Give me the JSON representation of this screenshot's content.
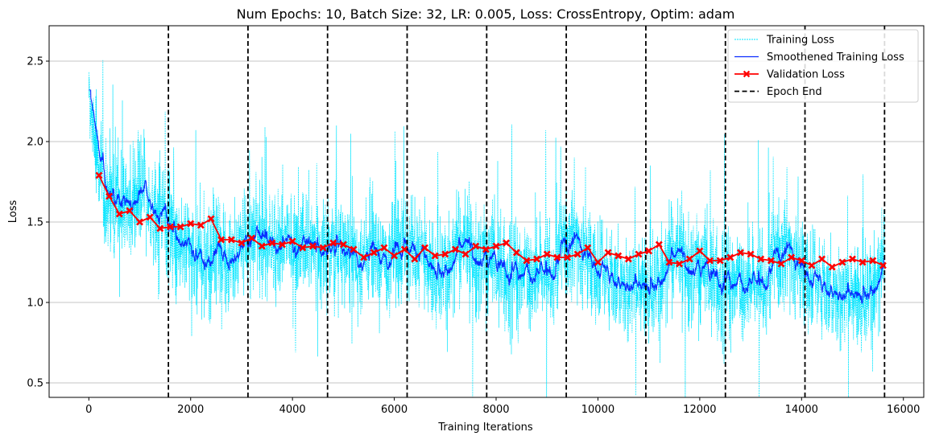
{
  "chart_data": {
    "type": "line",
    "title": "Num Epochs: 10, Batch Size: 32, LR: 0.005, Loss: CrossEntropy, Optim: adam",
    "xlabel": "Training Iterations",
    "ylabel": "Loss",
    "xlim": [
      -780,
      16400
    ],
    "ylim": [
      0.41,
      2.72
    ],
    "xticks": [
      0,
      2000,
      4000,
      6000,
      8000,
      10000,
      12000,
      14000,
      16000
    ],
    "xtick_labels": [
      "0",
      "2000",
      "4000",
      "6000",
      "8000",
      "10000",
      "12000",
      "14000",
      "16000"
    ],
    "yticks": [
      0.5,
      1.0,
      1.5,
      2.0,
      2.5
    ],
    "ytick_labels": [
      "0.5",
      "1.0",
      "1.5",
      "2.0",
      "2.5"
    ],
    "grid": "horizontal",
    "legend_position": "top-right",
    "colors": {
      "training": "#00e5ff",
      "smoothed": "#0a2cff",
      "validation": "#ff0000",
      "epoch": "#000000",
      "grid": "#b0b0b0"
    },
    "legend": [
      {
        "label": "Training Loss",
        "style": "training"
      },
      {
        "label": "Smoothened Training Loss",
        "style": "smoothed"
      },
      {
        "label": "Validation Loss",
        "style": "validation"
      },
      {
        "label": "Epoch End",
        "style": "epoch"
      }
    ],
    "epoch_ends": [
      1563,
      3126,
      4689,
      6252,
      7815,
      9378,
      10941,
      12504,
      14067,
      15630
    ],
    "validation_loss": {
      "x": [
        200,
        400,
        600,
        800,
        1000,
        1200,
        1400,
        1600,
        1800,
        2000,
        2200,
        2400,
        2600,
        2800,
        3000,
        3200,
        3400,
        3600,
        3800,
        4000,
        4200,
        4400,
        4600,
        4800,
        5000,
        5200,
        5400,
        5600,
        5800,
        6000,
        6200,
        6400,
        6600,
        6800,
        7000,
        7200,
        7400,
        7600,
        7800,
        8000,
        8200,
        8400,
        8600,
        8800,
        9000,
        9200,
        9400,
        9600,
        9800,
        10000,
        10200,
        10400,
        10600,
        10800,
        11000,
        11200,
        11400,
        11600,
        11800,
        12000,
        12200,
        12400,
        12600,
        12800,
        13000,
        13200,
        13400,
        13600,
        13800,
        14000,
        14200,
        14400,
        14600,
        14800,
        15000,
        15200,
        15400,
        15600
      ],
      "y": [
        1.79,
        1.66,
        1.55,
        1.57,
        1.5,
        1.53,
        1.46,
        1.47,
        1.47,
        1.49,
        1.48,
        1.52,
        1.39,
        1.39,
        1.37,
        1.4,
        1.35,
        1.37,
        1.36,
        1.38,
        1.34,
        1.35,
        1.34,
        1.37,
        1.36,
        1.33,
        1.28,
        1.31,
        1.34,
        1.29,
        1.33,
        1.27,
        1.34,
        1.29,
        1.3,
        1.33,
        1.3,
        1.35,
        1.33,
        1.35,
        1.37,
        1.31,
        1.26,
        1.27,
        1.3,
        1.28,
        1.28,
        1.3,
        1.34,
        1.25,
        1.31,
        1.29,
        1.27,
        1.3,
        1.32,
        1.36,
        1.25,
        1.24,
        1.27,
        1.32,
        1.26,
        1.26,
        1.28,
        1.31,
        1.3,
        1.27,
        1.26,
        1.24,
        1.28,
        1.26,
        1.23,
        1.27,
        1.22,
        1.25,
        1.27,
        1.25,
        1.26,
        1.23
      ]
    },
    "training_loss_profile": {
      "total_iterations": 15630,
      "start_value": 2.32,
      "trend_points": [
        [
          0,
          2.32
        ],
        [
          30,
          2.2
        ],
        [
          100,
          2.05
        ],
        [
          200,
          1.8
        ],
        [
          400,
          1.68
        ],
        [
          800,
          1.58
        ],
        [
          1500,
          1.47
        ],
        [
          2500,
          1.41
        ],
        [
          3500,
          1.37
        ],
        [
          5000,
          1.33
        ],
        [
          7000,
          1.3
        ],
        [
          9000,
          1.28
        ],
        [
          11000,
          1.25
        ],
        [
          13000,
          1.22
        ],
        [
          15630,
          1.19
        ]
      ]
    }
  }
}
